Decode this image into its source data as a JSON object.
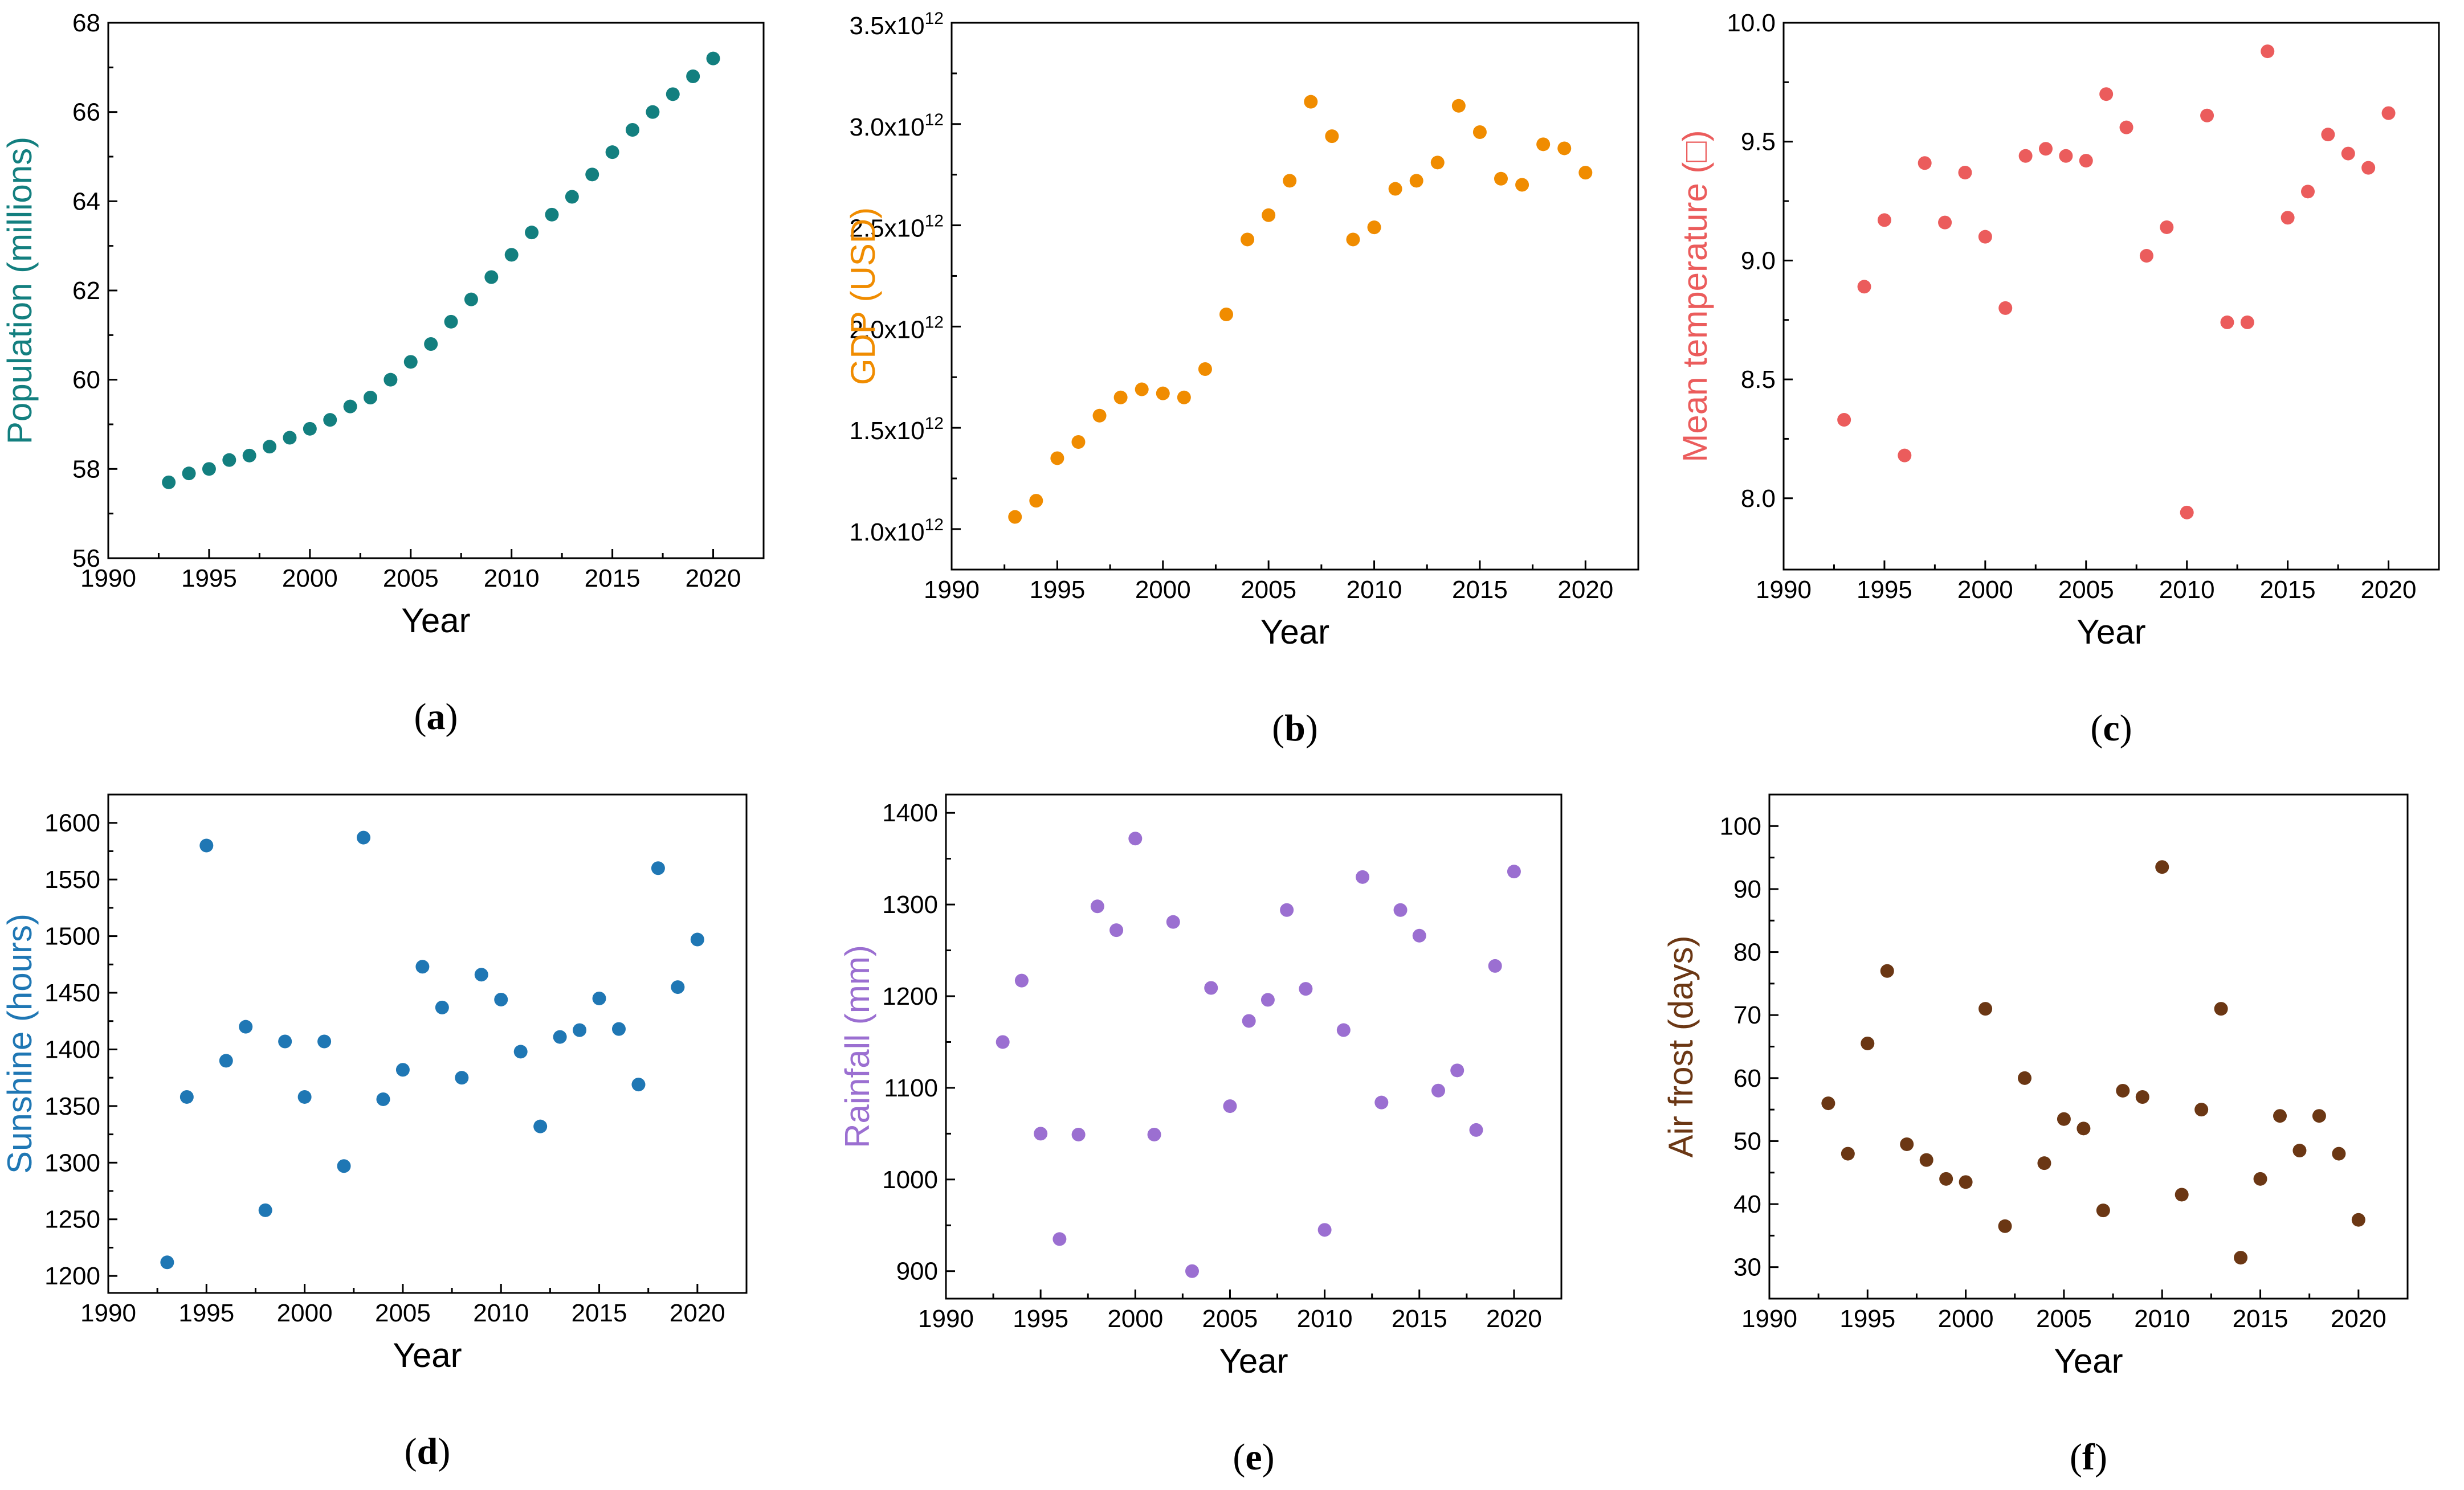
{
  "figure_title": "",
  "chart_data": [
    {
      "id": "a",
      "type": "scatter",
      "panel_label": "(a)",
      "panel_letter": "a",
      "color": "#137f7f",
      "title": "",
      "xlabel": "Year",
      "ylabel": "Population (millions)",
      "xlim": [
        1990,
        2022.5
      ],
      "ylim": [
        56,
        68
      ],
      "xticks": [
        1990,
        1995,
        2000,
        2005,
        2010,
        2015,
        2020
      ],
      "yticks": [
        56,
        58,
        60,
        62,
        64,
        66,
        68
      ],
      "ytick_labels": [
        "56",
        "58",
        "60",
        "62",
        "64",
        "66",
        "68"
      ],
      "grid": false,
      "x": [
        1993,
        1994,
        1995,
        1996,
        1997,
        1998,
        1999,
        2000,
        2001,
        2002,
        2003,
        2004,
        2005,
        2006,
        2007,
        2008,
        2009,
        2010,
        2011,
        2012,
        2013,
        2014,
        2015,
        2016,
        2017,
        2018,
        2019,
        2020
      ],
      "y": [
        57.7,
        57.9,
        58.0,
        58.2,
        58.3,
        58.5,
        58.7,
        58.9,
        59.1,
        59.4,
        59.6,
        60.0,
        60.4,
        60.8,
        61.3,
        61.8,
        62.3,
        62.8,
        63.3,
        63.7,
        64.1,
        64.6,
        65.1,
        65.6,
        66.0,
        66.4,
        66.8,
        67.2
      ]
    },
    {
      "id": "b",
      "type": "scatter",
      "panel_label": "(b)",
      "panel_letter": "b",
      "color": "#f08c00",
      "title": "",
      "xlabel": "Year",
      "ylabel": "GDP (USD)",
      "xlim": [
        1990,
        2022.5
      ],
      "ylim": [
        0.8,
        3.5
      ],
      "xticks": [
        1990,
        1995,
        2000,
        2005,
        2010,
        2015,
        2020
      ],
      "yticks": [
        1.0,
        1.5,
        2.0,
        2.5,
        3.0,
        3.5
      ],
      "ytick_labels": [
        "1.0x10",
        "1.5x10",
        "2.0x10",
        "2.5x10",
        "3.0x10",
        "3.5x10"
      ],
      "ytick_exponent": "12",
      "y_unit_note": "values in units of 10^12 USD",
      "grid": false,
      "x": [
        1993,
        1994,
        1995,
        1996,
        1997,
        1998,
        1999,
        2000,
        2001,
        2002,
        2003,
        2004,
        2005,
        2006,
        2007,
        2008,
        2009,
        2010,
        2011,
        2012,
        2013,
        2014,
        2015,
        2016,
        2017,
        2018,
        2019,
        2020
      ],
      "y": [
        1.06,
        1.14,
        1.35,
        1.43,
        1.56,
        1.65,
        1.69,
        1.67,
        1.65,
        1.79,
        2.06,
        2.43,
        2.55,
        2.72,
        3.11,
        2.94,
        2.43,
        2.49,
        2.68,
        2.72,
        2.81,
        3.09,
        2.96,
        2.73,
        2.7,
        2.9,
        2.88,
        2.76
      ]
    },
    {
      "id": "c",
      "type": "scatter",
      "panel_label": "(c)",
      "panel_letter": "c",
      "color": "#eb5c5c",
      "title": "",
      "xlabel": "Year",
      "ylabel": "Mean temperature (□)",
      "xlim": [
        1990,
        2022.5
      ],
      "ylim": [
        7.7,
        10.0
      ],
      "xticks": [
        1990,
        1995,
        2000,
        2005,
        2010,
        2015,
        2020
      ],
      "yticks": [
        8.0,
        8.5,
        9.0,
        9.5,
        10.0
      ],
      "ytick_labels": [
        "8.0",
        "8.5",
        "9.0",
        "9.5",
        "10.0"
      ],
      "grid": false,
      "x": [
        1993,
        1994,
        1995,
        1996,
        1997,
        1998,
        1999,
        2000,
        2001,
        2002,
        2003,
        2004,
        2005,
        2006,
        2007,
        2008,
        2009,
        2010,
        2011,
        2012,
        2013,
        2014,
        2015,
        2016,
        2017,
        2018,
        2019,
        2020
      ],
      "y": [
        8.33,
        8.89,
        9.17,
        8.18,
        9.41,
        9.16,
        9.37,
        9.1,
        8.8,
        9.44,
        9.47,
        9.44,
        9.42,
        9.7,
        9.56,
        9.02,
        9.14,
        7.94,
        9.61,
        8.74,
        8.74,
        9.88,
        9.18,
        9.29,
        9.53,
        9.45,
        9.39,
        9.62
      ]
    },
    {
      "id": "d",
      "type": "scatter",
      "panel_label": "(d)",
      "panel_letter": "d",
      "color": "#1f77b4",
      "title": "",
      "xlabel": "Year",
      "ylabel": "Sunshine (hours)",
      "xlim": [
        1990,
        2022.5
      ],
      "ylim": [
        1185,
        1625
      ],
      "xticks": [
        1990,
        1995,
        2000,
        2005,
        2010,
        2015,
        2020
      ],
      "yticks": [
        1200,
        1250,
        1300,
        1350,
        1400,
        1450,
        1500,
        1550,
        1600
      ],
      "ytick_labels": [
        "1200",
        "1250",
        "1300",
        "1350",
        "1400",
        "1450",
        "1500",
        "1550",
        "1600"
      ],
      "grid": false,
      "x": [
        1993,
        1994,
        1995,
        1996,
        1997,
        1998,
        1999,
        2000,
        2001,
        2002,
        2003,
        2004,
        2005,
        2006,
        2007,
        2008,
        2009,
        2010,
        2011,
        2012,
        2013,
        2014,
        2015,
        2016,
        2017,
        2018,
        2019,
        2020
      ],
      "y": [
        1212,
        1358,
        1580,
        1390,
        1420,
        1258,
        1407,
        1358,
        1407,
        1297,
        1587,
        1356,
        1382,
        1473,
        1437,
        1375,
        1466,
        1444,
        1398,
        1332,
        1411,
        1417,
        1445,
        1418,
        1369,
        1560,
        1455,
        1497
      ]
    },
    {
      "id": "e",
      "type": "scatter",
      "panel_label": "(e)",
      "panel_letter": "e",
      "color": "#9b6fd1",
      "title": "",
      "xlabel": "Year",
      "ylabel": "Rainfall (mm)",
      "xlim": [
        1990,
        2022.5
      ],
      "ylim": [
        870,
        1420
      ],
      "xticks": [
        1990,
        1995,
        2000,
        2005,
        2010,
        2015,
        2020
      ],
      "yticks": [
        900,
        1000,
        1100,
        1200,
        1300,
        1400
      ],
      "ytick_labels": [
        "900",
        "1000",
        "1100",
        "1200",
        "1300",
        "1400"
      ],
      "grid": false,
      "x": [
        1993,
        1994,
        1995,
        1996,
        1997,
        1998,
        1999,
        2000,
        2001,
        2002,
        2003,
        2004,
        2005,
        2006,
        2007,
        2008,
        2009,
        2010,
        2011,
        2012,
        2013,
        2014,
        2015,
        2016,
        2017,
        2018,
        2019,
        2020
      ],
      "y": [
        1150,
        1217,
        1050,
        935,
        1049,
        1298,
        1272,
        1372,
        1049,
        1281,
        900,
        1209,
        1080,
        1173,
        1196,
        1294,
        1208,
        945,
        1163,
        1330,
        1084,
        1294,
        1266,
        1097,
        1119,
        1054,
        1233,
        1336
      ]
    },
    {
      "id": "f",
      "type": "scatter",
      "panel_label": "(f)",
      "panel_letter": "f",
      "color": "#6b3714",
      "title": "",
      "xlabel": "Year",
      "ylabel": "Air frost (days)",
      "xlim": [
        1990,
        2022.5
      ],
      "ylim": [
        25,
        105
      ],
      "xticks": [
        1990,
        1995,
        2000,
        2005,
        2010,
        2015,
        2020
      ],
      "yticks": [
        30,
        40,
        50,
        60,
        70,
        80,
        90,
        100
      ],
      "ytick_labels": [
        "30",
        "40",
        "50",
        "60",
        "70",
        "80",
        "90",
        "100"
      ],
      "grid": false,
      "x": [
        1993,
        1994,
        1995,
        1996,
        1997,
        1998,
        1999,
        2000,
        2001,
        2002,
        2003,
        2004,
        2005,
        2006,
        2007,
        2008,
        2009,
        2010,
        2011,
        2012,
        2013,
        2014,
        2015,
        2016,
        2017,
        2018,
        2019,
        2020
      ],
      "y": [
        56.0,
        48.0,
        65.5,
        77.0,
        49.5,
        47.0,
        44.0,
        43.5,
        71.0,
        36.5,
        60.0,
        46.5,
        53.5,
        52.0,
        39.0,
        58.0,
        57.0,
        93.5,
        41.5,
        55.0,
        71.0,
        31.5,
        44.0,
        54.0,
        48.5,
        54.0,
        48.0,
        37.5
      ]
    }
  ]
}
